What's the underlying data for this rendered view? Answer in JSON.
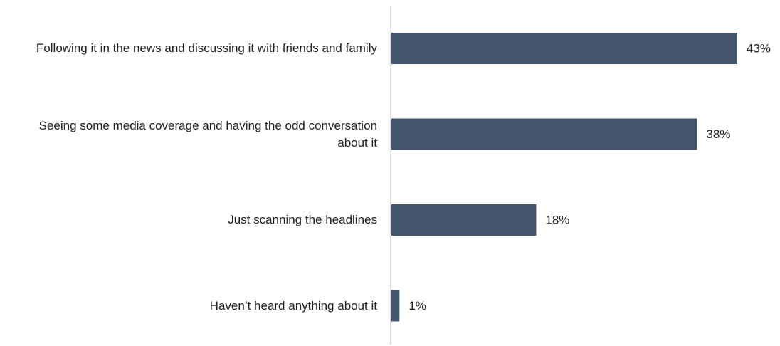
{
  "chart_data": {
    "type": "bar",
    "orientation": "horizontal",
    "categories": [
      "Following it in the news and discussing it with friends and family",
      "Seeing some media coverage and having the odd conversation about it",
      "Just scanning the headlines",
      "Haven’t heard anything about it"
    ],
    "values": [
      43,
      38,
      18,
      1
    ],
    "value_labels": [
      "43%",
      "38%",
      "18%",
      "1%"
    ],
    "color": "#44546a"
  }
}
